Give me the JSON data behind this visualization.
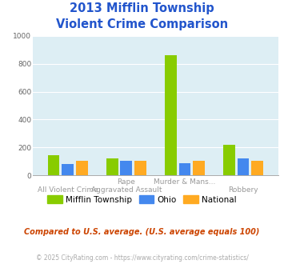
{
  "title_line1": "2013 Mifflin Township",
  "title_line2": "Violent Crime Comparison",
  "title_color": "#2255cc",
  "top_labels": [
    "",
    "Rape",
    "Murder & Mans...",
    ""
  ],
  "bot_labels": [
    "All Violent Crime",
    "Aggravated Assault",
    "",
    "Robbery"
  ],
  "mifflin": [
    145,
    120,
    860,
    218
  ],
  "ohio": [
    80,
    105,
    90,
    120
  ],
  "national": [
    105,
    108,
    105,
    103
  ],
  "mifflin_color": "#88cc00",
  "ohio_color": "#4488ee",
  "national_color": "#ffaa22",
  "ylim": [
    0,
    1000
  ],
  "yticks": [
    0,
    200,
    400,
    600,
    800,
    1000
  ],
  "bg_color": "#ddeef4",
  "grid_color": "#c8dde6",
  "footnote1": "Compared to U.S. average. (U.S. average equals 100)",
  "footnote2": "© 2025 CityRating.com - https://www.cityrating.com/crime-statistics/",
  "footnote1_color": "#cc4400",
  "footnote2_color": "#aaaaaa",
  "legend_labels": [
    "Mifflin Township",
    "Ohio",
    "National"
  ]
}
